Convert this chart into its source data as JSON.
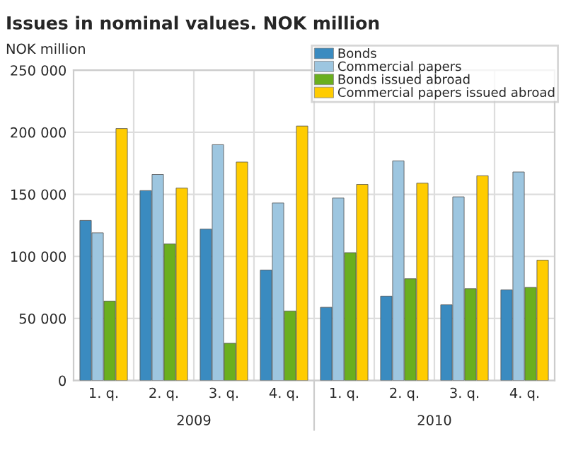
{
  "chart_data": {
    "type": "bar",
    "title": "Issues in nominal values. NOK million",
    "ylabel": "NOK million",
    "categories": [
      "1. q.",
      "2. q.",
      "3. q.",
      "4. q.",
      "1. q.",
      "2. q.",
      "3. q.",
      "4. q."
    ],
    "series": [
      {
        "name": "Bonds",
        "color": "#3a8bc0",
        "values": [
          129000,
          153000,
          122000,
          89000,
          59000,
          68000,
          61000,
          73000
        ]
      },
      {
        "name": "Commercial papers",
        "color": "#9dc6e0",
        "values": [
          119000,
          166000,
          190000,
          143000,
          147000,
          177000,
          148000,
          168000
        ]
      },
      {
        "name": "Bonds issued abroad",
        "color": "#6aaf1e",
        "values": [
          64000,
          110000,
          30000,
          56000,
          103000,
          82000,
          74000,
          75000
        ]
      },
      {
        "name": "Commercial papers issued abroad",
        "color": "#ffcc00",
        "values": [
          203000,
          155000,
          176000,
          205000,
          158000,
          159000,
          165000,
          97000
        ]
      }
    ],
    "annotations": [
      "2009",
      "2010"
    ],
    "ylim": [
      0,
      250000
    ],
    "yticks": [
      {
        "value": 0,
        "label": "0"
      },
      {
        "value": 50000,
        "label": "50 000"
      },
      {
        "value": 100000,
        "label": "100 000"
      },
      {
        "value": 150000,
        "label": "150 000"
      },
      {
        "value": 200000,
        "label": "200 000"
      },
      {
        "value": 250000,
        "label": "250 000"
      }
    ],
    "grid": true,
    "legend": "top right"
  }
}
